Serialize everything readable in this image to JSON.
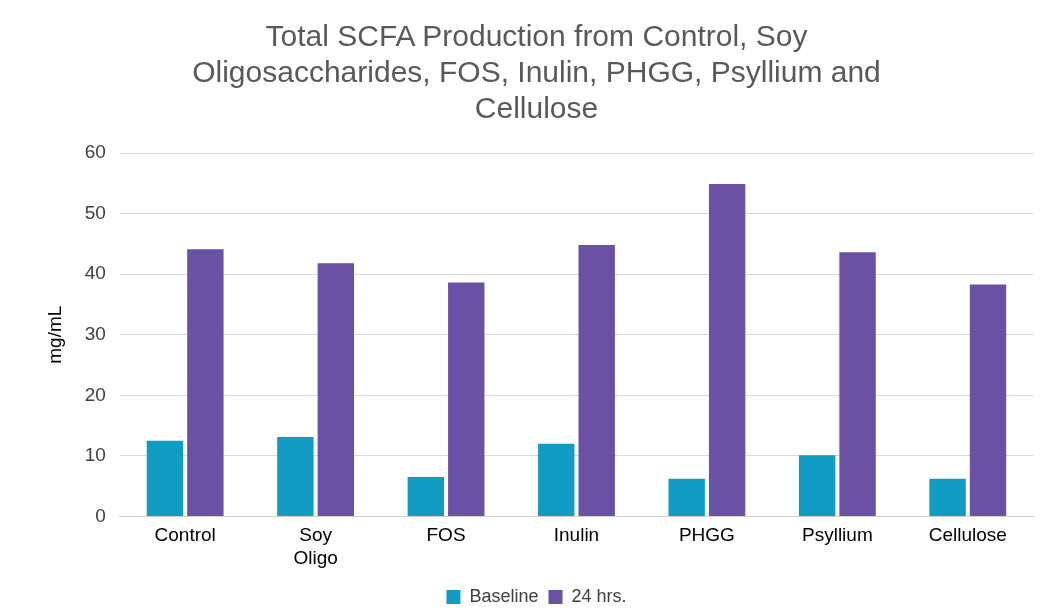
{
  "chart_data": {
    "type": "bar",
    "title": "Total SCFA Production from Control, Soy Oligosaccharides, FOS, Inulin, PHGG, Psyllium and Cellulose",
    "ylabel": "mg/mL",
    "categories": [
      "Control",
      "Soy Oligo",
      "FOS",
      "Inulin",
      "PHGG",
      "Psyllium",
      "Cellulose"
    ],
    "series": [
      {
        "name": "Baseline",
        "color": "#119cc4",
        "values": [
          12.5,
          13.1,
          6.5,
          12.0,
          6.2,
          10.1,
          6.2
        ]
      },
      {
        "name": "24 hrs.",
        "color": "#6a51a3",
        "values": [
          44.1,
          41.8,
          38.6,
          44.8,
          54.9,
          43.6,
          38.3
        ]
      }
    ],
    "ylim": [
      0,
      60
    ],
    "yticks": [
      0,
      10,
      20,
      30,
      40,
      50,
      60
    ],
    "grid": "y",
    "legend": "bottom"
  }
}
